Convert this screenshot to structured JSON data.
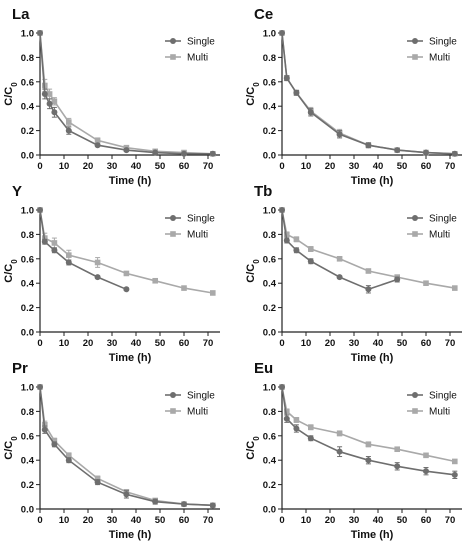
{
  "chart_data": [
    {
      "type": "line",
      "title": "La",
      "xlabel": "Time (h)",
      "ylabel": "C/C",
      "ylabel_sub": "0",
      "xlim": [
        0,
        75
      ],
      "ylim": [
        0,
        1.0
      ],
      "xticks": [
        "0",
        "10",
        "20",
        "30",
        "40",
        "50",
        "60",
        "70"
      ],
      "yticks": [
        "0.0",
        "0.2",
        "0.4",
        "0.6",
        "0.8",
        "1.0"
      ],
      "legend": "top-right",
      "series": [
        {
          "name": "Single",
          "x": [
            0,
            2,
            4,
            6,
            12,
            24,
            36,
            48,
            60,
            72
          ],
          "y": [
            1.0,
            0.5,
            0.42,
            0.35,
            0.2,
            0.08,
            0.04,
            0.02,
            0.01,
            0.01
          ],
          "err": [
            0,
            0.04,
            0.04,
            0.04,
            0.03,
            0.01,
            0.01,
            0,
            0,
            0
          ]
        },
        {
          "name": "Multi",
          "x": [
            0,
            2,
            4,
            6,
            12,
            24,
            36,
            48,
            60,
            72
          ],
          "y": [
            1.0,
            0.57,
            0.5,
            0.44,
            0.27,
            0.12,
            0.06,
            0.03,
            0.02,
            0.01
          ],
          "err": [
            0,
            0.05,
            0.04,
            0.03,
            0.03,
            0.02,
            0.01,
            0.01,
            0,
            0
          ]
        }
      ]
    },
    {
      "type": "line",
      "title": "Ce",
      "xlabel": "Time (h)",
      "ylabel": "C/C",
      "ylabel_sub": "0",
      "xlim": [
        0,
        75
      ],
      "ylim": [
        0,
        1.0
      ],
      "xticks": [
        "0",
        "10",
        "20",
        "30",
        "40",
        "50",
        "60",
        "70"
      ],
      "yticks": [
        "0.0",
        "0.2",
        "0.4",
        "0.6",
        "0.8",
        "1.0"
      ],
      "legend": "top-right",
      "series": [
        {
          "name": "Single",
          "x": [
            0,
            2,
            6,
            12,
            24,
            36,
            48,
            60,
            72
          ],
          "y": [
            1.0,
            0.63,
            0.51,
            0.35,
            0.17,
            0.08,
            0.04,
            0.02,
            0.01
          ],
          "err": [
            0,
            0.02,
            0.02,
            0.03,
            0.03,
            0.02,
            0.01,
            0,
            0
          ]
        },
        {
          "name": "Multi",
          "x": [
            0,
            2,
            6,
            12,
            24,
            36,
            48,
            60,
            72
          ],
          "y": [
            1.0,
            0.63,
            0.51,
            0.36,
            0.18,
            0.08,
            0.04,
            0.02,
            0.01
          ],
          "err": [
            0,
            0.02,
            0.02,
            0.03,
            0.03,
            0.02,
            0.01,
            0,
            0
          ]
        }
      ]
    },
    {
      "type": "line",
      "title": "Y",
      "xlabel": "Time (h)",
      "ylabel": "C/C",
      "ylabel_sub": "0",
      "xlim": [
        0,
        75
      ],
      "ylim": [
        0,
        1.0
      ],
      "xticks": [
        "0",
        "10",
        "20",
        "30",
        "40",
        "50",
        "60",
        "70"
      ],
      "yticks": [
        "0.0",
        "0.2",
        "0.4",
        "0.6",
        "0.8",
        "1.0"
      ],
      "legend": "top-right",
      "series": [
        {
          "name": "Single",
          "x": [
            0,
            2,
            6,
            12,
            24,
            36
          ],
          "y": [
            1.0,
            0.74,
            0.67,
            0.57,
            0.45,
            0.35
          ],
          "err": [
            0,
            0.02,
            0.02,
            0.02,
            0.01,
            0.01
          ]
        },
        {
          "name": "Multi",
          "x": [
            0,
            2,
            6,
            12,
            24,
            36,
            48,
            60,
            72
          ],
          "y": [
            1.0,
            0.77,
            0.73,
            0.63,
            0.57,
            0.48,
            0.42,
            0.36,
            0.32
          ],
          "err": [
            0,
            0.04,
            0.04,
            0.04,
            0.04,
            0.01,
            0.01,
            0.01,
            0.01
          ]
        }
      ]
    },
    {
      "type": "line",
      "title": "Tb",
      "xlabel": "Time (h)",
      "ylabel": "C/C",
      "ylabel_sub": "0",
      "xlim": [
        0,
        75
      ],
      "ylim": [
        0,
        1.0
      ],
      "xticks": [
        "0",
        "10",
        "20",
        "30",
        "40",
        "50",
        "60",
        "70"
      ],
      "yticks": [
        "0.0",
        "0.2",
        "0.4",
        "0.6",
        "0.8",
        "1.0"
      ],
      "legend": "top-right",
      "series": [
        {
          "name": "Single",
          "x": [
            0,
            2,
            6,
            12,
            24,
            36,
            48
          ],
          "y": [
            1.0,
            0.75,
            0.67,
            0.58,
            0.45,
            0.35,
            0.43
          ],
          "err": [
            0,
            0.02,
            0.02,
            0.02,
            0.01,
            0.03,
            0.02
          ]
        },
        {
          "name": "Multi",
          "x": [
            0,
            2,
            6,
            12,
            24,
            36,
            48,
            60,
            72
          ],
          "y": [
            1.0,
            0.8,
            0.76,
            0.68,
            0.6,
            0.5,
            0.45,
            0.4,
            0.36
          ],
          "err": [
            0,
            0.02,
            0.02,
            0.02,
            0.01,
            0.01,
            0.01,
            0.01,
            0.01
          ]
        }
      ]
    },
    {
      "type": "line",
      "title": "Pr",
      "xlabel": "Time (h)",
      "ylabel": "C/C",
      "ylabel_sub": "0",
      "xlim": [
        0,
        75
      ],
      "ylim": [
        0,
        1.0
      ],
      "xticks": [
        "0",
        "10",
        "20",
        "30",
        "40",
        "50",
        "60",
        "70"
      ],
      "yticks": [
        "0.0",
        "0.2",
        "0.4",
        "0.6",
        "0.8",
        "1.0"
      ],
      "legend": "top-right",
      "series": [
        {
          "name": "Single",
          "x": [
            0,
            2,
            6,
            12,
            24,
            36,
            48,
            60,
            72
          ],
          "y": [
            1.0,
            0.65,
            0.53,
            0.4,
            0.22,
            0.12,
            0.06,
            0.04,
            0.03
          ],
          "err": [
            0,
            0.03,
            0.02,
            0.02,
            0.02,
            0.03,
            0.02,
            0.01,
            0.01
          ]
        },
        {
          "name": "Multi",
          "x": [
            0,
            2,
            6,
            12,
            24,
            36,
            48,
            60,
            72
          ],
          "y": [
            1.0,
            0.69,
            0.56,
            0.44,
            0.25,
            0.14,
            0.07,
            0.04,
            0.03
          ],
          "err": [
            0,
            0.03,
            0.02,
            0.02,
            0.02,
            0.02,
            0.01,
            0.01,
            0.01
          ]
        }
      ]
    },
    {
      "type": "line",
      "title": "Eu",
      "xlabel": "Time (h)",
      "ylabel": "C/C",
      "ylabel_sub": "0",
      "xlim": [
        0,
        75
      ],
      "ylim": [
        0,
        1.0
      ],
      "xticks": [
        "0",
        "10",
        "20",
        "30",
        "40",
        "50",
        "60",
        "70"
      ],
      "yticks": [
        "0.0",
        "0.2",
        "0.4",
        "0.6",
        "0.8",
        "1.0"
      ],
      "legend": "top-right",
      "series": [
        {
          "name": "Single",
          "x": [
            0,
            2,
            6,
            12,
            24,
            36,
            48,
            60,
            72
          ],
          "y": [
            1.0,
            0.74,
            0.66,
            0.58,
            0.47,
            0.4,
            0.35,
            0.31,
            0.28
          ],
          "err": [
            0,
            0.03,
            0.03,
            0.02,
            0.04,
            0.03,
            0.03,
            0.03,
            0.03
          ]
        },
        {
          "name": "Multi",
          "x": [
            0,
            2,
            6,
            12,
            24,
            36,
            48,
            60,
            72
          ],
          "y": [
            1.0,
            0.8,
            0.73,
            0.67,
            0.62,
            0.53,
            0.49,
            0.44,
            0.39
          ],
          "err": [
            0,
            0.02,
            0.02,
            0.02,
            0.02,
            0.02,
            0.01,
            0.01,
            0.01
          ]
        }
      ]
    }
  ],
  "colors": {
    "single": "#6e6e6e",
    "multi": "#a9a9a9",
    "axis": "#222222"
  }
}
